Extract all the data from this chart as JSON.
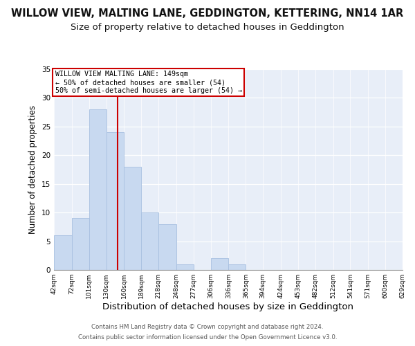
{
  "title": "WILLOW VIEW, MALTING LANE, GEDDINGTON, KETTERING, NN14 1AR",
  "subtitle": "Size of property relative to detached houses in Geddington",
  "xlabel": "Distribution of detached houses by size in Geddington",
  "ylabel": "Number of detached properties",
  "bin_edges": [
    42,
    72,
    101,
    130,
    160,
    189,
    218,
    248,
    277,
    306,
    336,
    365,
    394,
    424,
    453,
    482,
    512,
    541,
    571,
    600,
    629
  ],
  "bar_heights": [
    6,
    9,
    28,
    24,
    18,
    10,
    8,
    1,
    0,
    2,
    1,
    0,
    0,
    0,
    0,
    0,
    0,
    0,
    0,
    0
  ],
  "bar_color": "#c8d9f0",
  "bar_edgecolor": "#a8c0e0",
  "vline_x": 149,
  "vline_color": "#cc0000",
  "ylim": [
    0,
    35
  ],
  "yticks": [
    0,
    5,
    10,
    15,
    20,
    25,
    30,
    35
  ],
  "annotation_title": "WILLOW VIEW MALTING LANE: 149sqm",
  "annotation_line1": "← 50% of detached houses are smaller (54)",
  "annotation_line2": "50% of semi-detached houses are larger (54) →",
  "annotation_box_facecolor": "#ffffff",
  "annotation_box_edgecolor": "#cc0000",
  "footer_line1": "Contains HM Land Registry data © Crown copyright and database right 2024.",
  "footer_line2": "Contains public sector information licensed under the Open Government Licence v3.0.",
  "fig_background": "#ffffff",
  "plot_background": "#e8eef8",
  "title_fontsize": 10.5,
  "subtitle_fontsize": 9.5,
  "xlabel_fontsize": 9.5,
  "ylabel_fontsize": 8.5,
  "tick_labels": [
    "42sqm",
    "72sqm",
    "101sqm",
    "130sqm",
    "160sqm",
    "189sqm",
    "218sqm",
    "248sqm",
    "277sqm",
    "306sqm",
    "336sqm",
    "365sqm",
    "394sqm",
    "424sqm",
    "453sqm",
    "482sqm",
    "512sqm",
    "541sqm",
    "571sqm",
    "600sqm",
    "629sqm"
  ]
}
